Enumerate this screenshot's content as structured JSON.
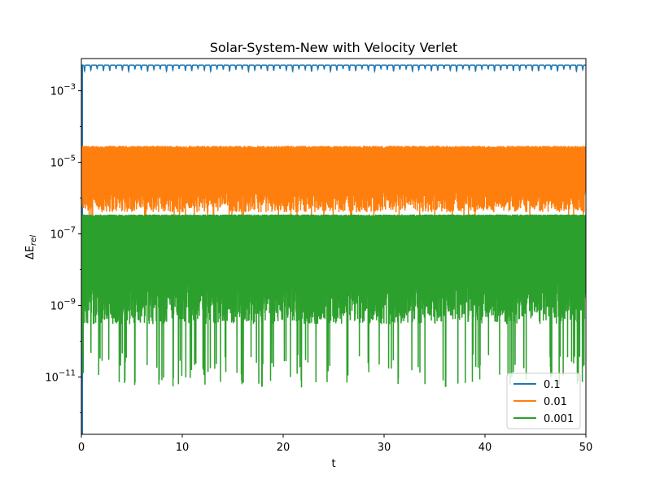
{
  "chart_data": {
    "type": "line",
    "title": "Solar-System-New with Velocity Verlet",
    "xlabel": "t",
    "ylabel_base": "ΔE",
    "ylabel_sub": "rel",
    "x_scale": "linear",
    "y_scale": "log",
    "xlim": [
      0,
      50
    ],
    "ylim_log10": [
      -12.6,
      -2.1
    ],
    "xticks": [
      0,
      10,
      20,
      30,
      40,
      50
    ],
    "xtick_labels": [
      "0",
      "10",
      "20",
      "30",
      "40",
      "50"
    ],
    "yticks_log10": [
      -11,
      -9,
      -7,
      -5,
      -3
    ],
    "ytick_labels": [
      {
        "base": "10",
        "exp": "−11"
      },
      {
        "base": "10",
        "exp": "−9"
      },
      {
        "base": "10",
        "exp": "−7"
      },
      {
        "base": "10",
        "exp": "−5"
      },
      {
        "base": "10",
        "exp": "−3"
      }
    ],
    "grid": false,
    "legend_position": "lower right",
    "series": [
      {
        "name": "0.1",
        "color": "#1f77b4",
        "description_values": {
          "upper": 0.0052,
          "lower": 0.0035,
          "cycles": 80
        },
        "x_start": 0.1,
        "min_start": 1e-13
      },
      {
        "name": "0.01",
        "color": "#ff7f0e",
        "description_values": {
          "upper": 2.9e-05,
          "lower": 4e-07,
          "cycles": 800
        },
        "x_start": 0.02
      },
      {
        "name": "0.001",
        "color": "#2ca02c",
        "description_values": {
          "upper": 3.5e-07,
          "typical_low": 3e-10,
          "deep_low": 5e-12
        }
      }
    ]
  }
}
